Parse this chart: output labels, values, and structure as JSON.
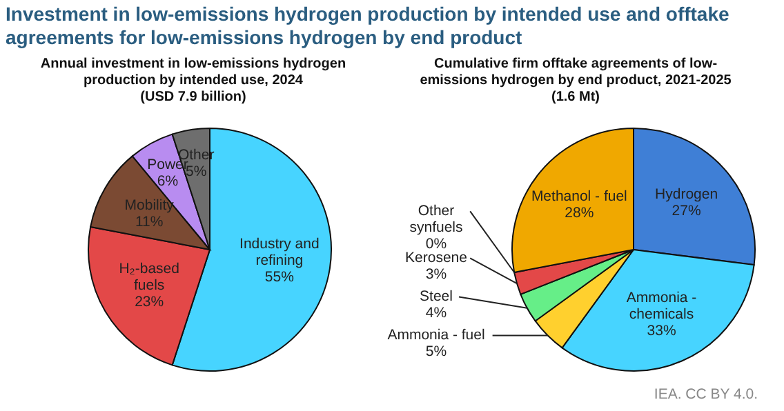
{
  "chart_data": [
    {
      "type": "pie",
      "title": "Investment in low-emissions hydrogen production by intended use and offtake\nagreements for low-emissions hydrogen by end product",
      "subtitle": "Annual investment in low-emissions hydrogen\nproduction by intended use, 2024\n(USD 7.9 billion)",
      "categories": [
        "Industry and\nrefining",
        "H₂-based\nfuels",
        "Mobility",
        "Power",
        "Other"
      ],
      "values": [
        55,
        23,
        11,
        6,
        5
      ],
      "value_labels": [
        "55%",
        "23%",
        "11%",
        "6%",
        "5%"
      ],
      "colors": [
        "#47d4ff",
        "#e34848",
        "#7b4a33",
        "#b88cf0",
        "#6e6e6e"
      ],
      "legend": false
    },
    {
      "type": "pie",
      "subtitle": "Cumulative firm offtake agreements of low-\nemissions hydrogen by end product, 2021-2025\n(1.6 Mt)",
      "categories": [
        "Hydrogen",
        "Ammonia -\nchemicals",
        "Ammonia - fuel",
        "Steel",
        "Kerosene",
        "Other\nsynfuels",
        "Methanol - fuel"
      ],
      "values": [
        27,
        33,
        5,
        4,
        3,
        0,
        28
      ],
      "value_labels": [
        "27%",
        "33%",
        "5%",
        "4%",
        "3%",
        "0%",
        "28%"
      ],
      "colors": [
        "#3f7fd6",
        "#47d4ff",
        "#ffd02e",
        "#66ee88",
        "#e34848",
        "#a0a0a0",
        "#f0a800"
      ],
      "legend": false,
      "annotations": [
        "IEA. CC BY 4.0."
      ]
    }
  ]
}
